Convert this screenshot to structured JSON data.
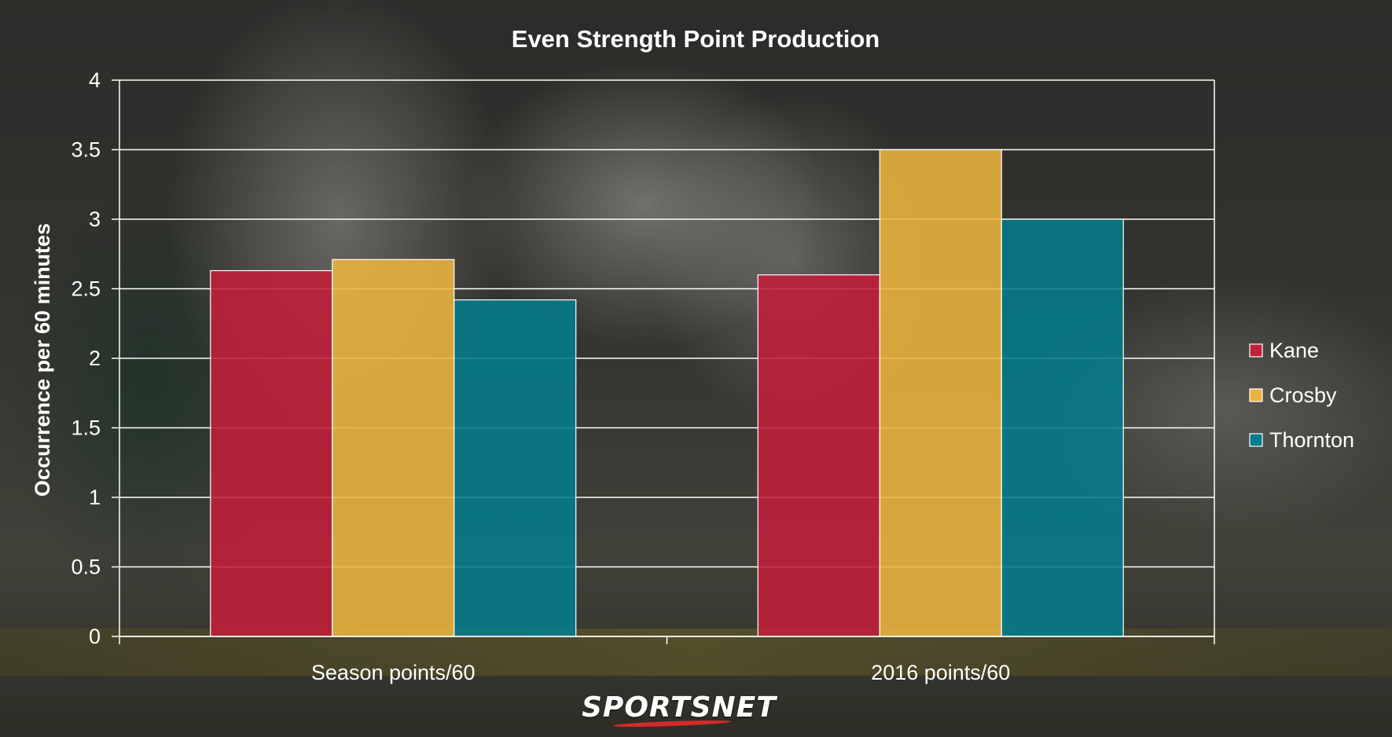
{
  "chart_data": {
    "type": "bar",
    "title": "Even Strength Point Production",
    "ylabel": "Occurrence per 60 minutes",
    "xlabel": "",
    "categories": [
      "Season points/60",
      "2016 points/60"
    ],
    "ylim": [
      0,
      4
    ],
    "yticks": [
      0,
      0.5,
      1,
      1.5,
      2,
      2.5,
      3,
      3.5,
      4
    ],
    "ytick_labels": [
      "0",
      "0.5",
      "1",
      "1.5",
      "2",
      "2.5",
      "3",
      "3.5",
      "4"
    ],
    "grid": true,
    "legend_position": "right",
    "series": [
      {
        "name": "Kane",
        "color": "#c21f3a",
        "values": [
          2.63,
          2.6
        ]
      },
      {
        "name": "Crosby",
        "color": "#eab53d",
        "values": [
          2.71,
          3.5
        ]
      },
      {
        "name": "Thornton",
        "color": "#047c8b",
        "values": [
          2.42,
          3.0
        ]
      }
    ]
  },
  "branding": {
    "logo_text": "SPORTSNET"
  }
}
